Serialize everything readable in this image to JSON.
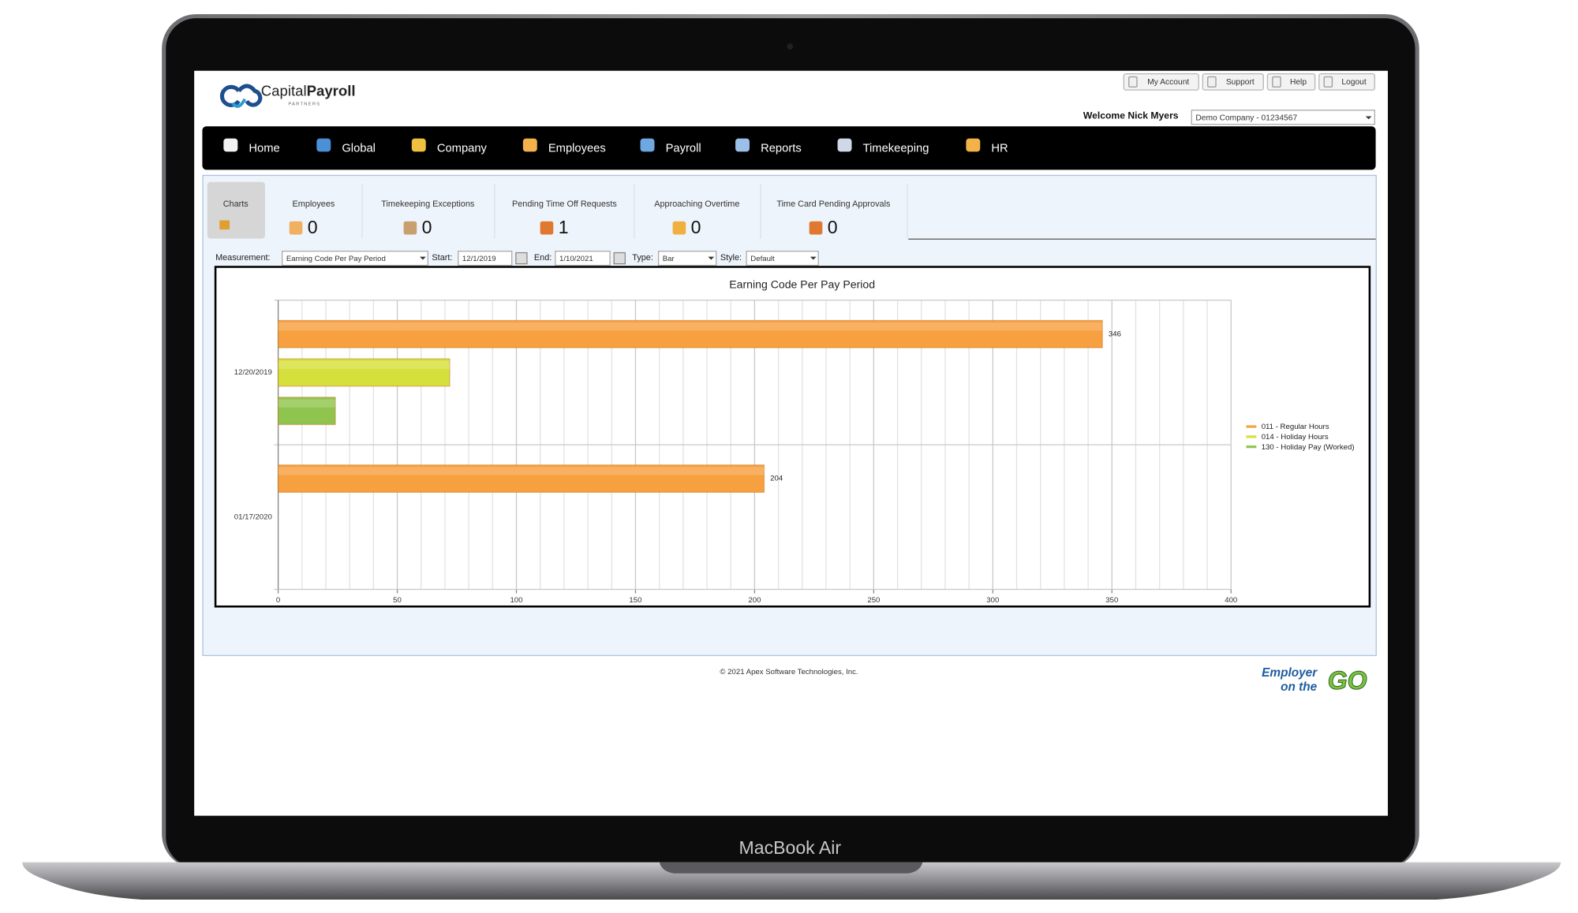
{
  "header": {
    "logo": {
      "first": "Capital",
      "second": "Payroll",
      "sub": "PARTNERS"
    },
    "links": [
      "My Account",
      "Support",
      "Help",
      "Logout"
    ],
    "welcome": "Welcome Nick Myers",
    "company": "Demo Company - 01234567"
  },
  "nav": [
    "Home",
    "Global",
    "Company",
    "Employees",
    "Payroll",
    "Reports",
    "Timekeeping",
    "HR"
  ],
  "tabs": [
    {
      "label": "Charts"
    },
    {
      "label": "Employees",
      "count": 0
    },
    {
      "label": "Timekeeping Exceptions",
      "count": 0
    },
    {
      "label": "Pending Time Off Requests",
      "count": 1
    },
    {
      "label": "Approaching Overtime",
      "count": 0
    },
    {
      "label": "Time Card Pending Approvals",
      "count": 0
    }
  ],
  "filters": {
    "measurement_label": "Measurement:",
    "measurement": "Earning Code Per Pay Period",
    "start_label": "Start:",
    "start": "12/1/2019",
    "end_label": "End:",
    "end": "1/10/2021",
    "type_label": "Type:",
    "type": "Bar",
    "style_label": "Style:",
    "style": "Default"
  },
  "chart_data": {
    "type": "bar",
    "orientation": "horizontal",
    "title": "Earning Code Per Pay Period",
    "categories": [
      "12/20/2019",
      "01/17/2020"
    ],
    "series": [
      {
        "name": "011 - Regular Hours",
        "color": "#f7a040",
        "values": [
          346,
          204
        ],
        "show_values": true
      },
      {
        "name": "014 - Holiday Hours",
        "color": "#d6e03c",
        "values": [
          72,
          null
        ],
        "show_values": false
      },
      {
        "name": "130 - Holiday Pay (Worked)",
        "color": "#8fc54e",
        "values": [
          24,
          null
        ],
        "show_values": false
      }
    ],
    "xlim": [
      0,
      400
    ],
    "xticks": [
      0,
      50,
      100,
      150,
      200,
      250,
      300,
      350,
      400
    ],
    "minor_xticks": [
      10,
      20,
      30,
      40,
      60,
      70,
      80,
      90,
      110,
      120,
      130,
      140,
      160,
      170,
      180,
      190,
      210,
      220,
      230,
      240,
      260,
      270,
      280,
      290,
      310,
      320,
      330,
      340,
      360,
      370,
      380,
      390
    ],
    "grid": true,
    "legend": "right"
  },
  "footer": {
    "copyright": "© 2021 Apex Software Technologies, Inc.",
    "badge": {
      "line1": "Employer",
      "line2": "on the",
      "line3": "GO"
    }
  },
  "device": "MacBook Air"
}
